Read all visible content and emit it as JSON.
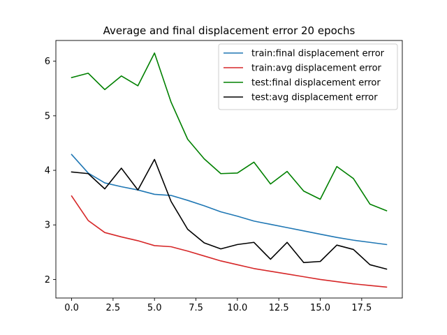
{
  "chart_data": {
    "type": "line",
    "title": "Average and final displacement error 20 epochs",
    "xlabel": "",
    "ylabel": "",
    "x": [
      0,
      1,
      2,
      3,
      4,
      5,
      6,
      7,
      8,
      9,
      10,
      11,
      12,
      13,
      14,
      15,
      16,
      17,
      18,
      19
    ],
    "xlim": [
      -0.95,
      19.95
    ],
    "ylim": [
      1.66,
      6.38
    ],
    "xticks": [
      0.0,
      2.5,
      5.0,
      7.5,
      10.0,
      12.5,
      15.0,
      17.5
    ],
    "xtick_labels": [
      "0.0",
      "2.5",
      "5.0",
      "7.5",
      "10.0",
      "12.5",
      "15.0",
      "17.5"
    ],
    "yticks": [
      2,
      3,
      4,
      5,
      6
    ],
    "ytick_labels": [
      "2",
      "3",
      "4",
      "5",
      "6"
    ],
    "grid": false,
    "legend_position": "top-right",
    "series": [
      {
        "name": "train:final displacement error",
        "color": "#1f77b4",
        "values": [
          4.29,
          3.95,
          3.77,
          3.7,
          3.64,
          3.56,
          3.54,
          3.45,
          3.35,
          3.24,
          3.16,
          3.07,
          3.01,
          2.95,
          2.89,
          2.83,
          2.77,
          2.72,
          2.68,
          2.64
        ]
      },
      {
        "name": "train:avg displacement error",
        "color": "#d62728",
        "values": [
          3.53,
          3.08,
          2.86,
          2.78,
          2.71,
          2.62,
          2.6,
          2.52,
          2.43,
          2.34,
          2.27,
          2.2,
          2.15,
          2.1,
          2.05,
          2.0,
          1.96,
          1.92,
          1.89,
          1.86
        ]
      },
      {
        "name": "test:final displacement error",
        "color": "#008000",
        "values": [
          5.7,
          5.78,
          5.48,
          5.73,
          5.55,
          6.15,
          5.25,
          4.57,
          4.21,
          3.94,
          3.95,
          4.15,
          3.75,
          3.98,
          3.62,
          3.47,
          4.07,
          3.85,
          3.38,
          3.26
        ]
      },
      {
        "name": "test:avg displacement error",
        "color": "#000000",
        "values": [
          3.97,
          3.94,
          3.66,
          4.04,
          3.64,
          4.2,
          3.43,
          2.92,
          2.67,
          2.56,
          2.64,
          2.68,
          2.37,
          2.68,
          2.31,
          2.33,
          2.63,
          2.55,
          2.27,
          2.19
        ]
      }
    ]
  }
}
